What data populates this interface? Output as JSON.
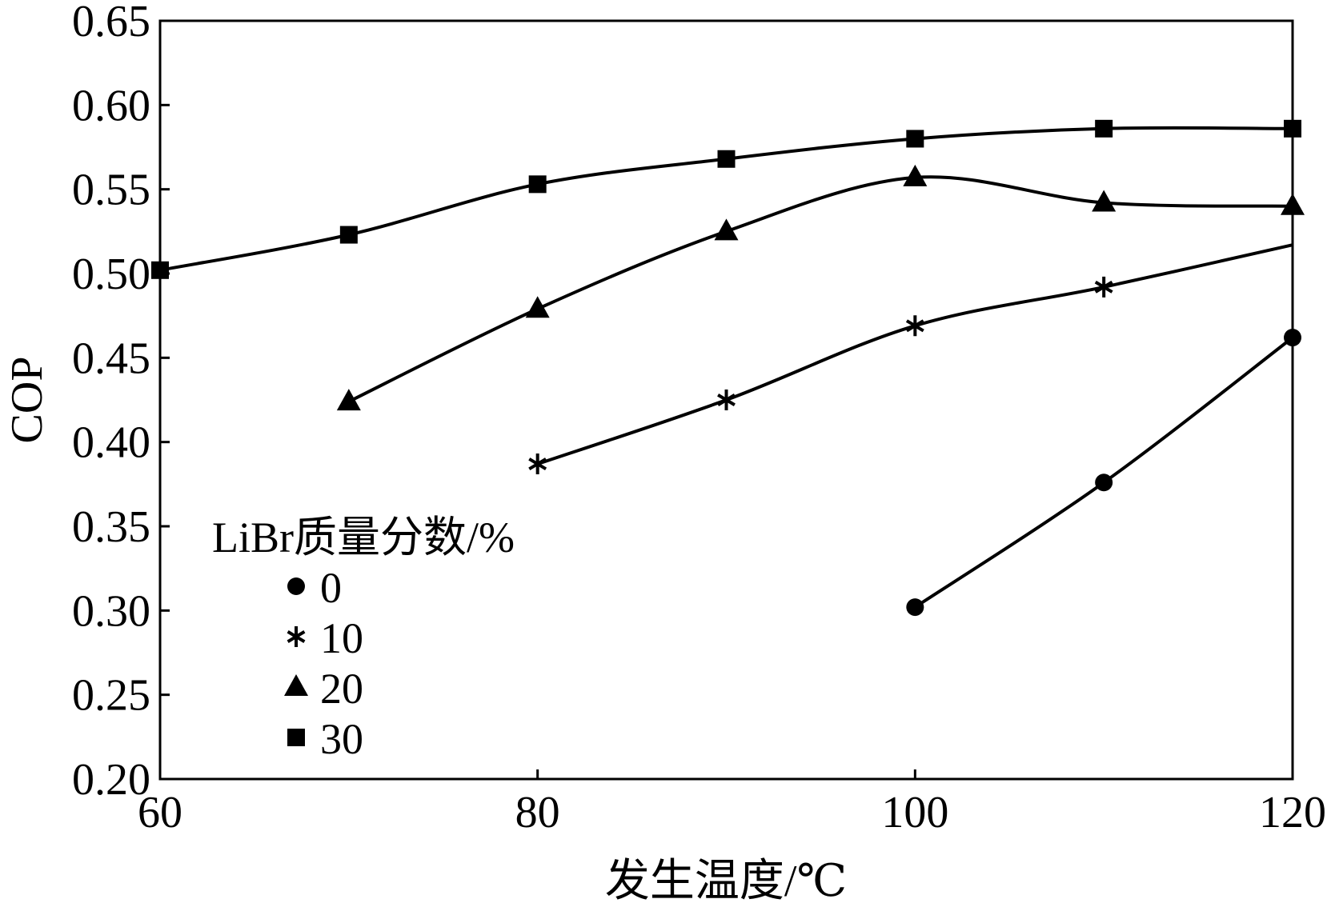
{
  "chart_data": {
    "type": "line",
    "xlabel": "发生温度/℃",
    "ylabel": "COP",
    "xlim": [
      60,
      120
    ],
    "ylim": [
      0.2,
      0.65
    ],
    "xticks": [
      "60",
      "80",
      "100",
      "120"
    ],
    "xtick_values": [
      60,
      80,
      100,
      120
    ],
    "yticks": [
      "0.20",
      "0.25",
      "0.30",
      "0.35",
      "0.40",
      "0.45",
      "0.50",
      "0.55",
      "0.60",
      "0.65"
    ],
    "ytick_values": [
      0.2,
      0.25,
      0.3,
      0.35,
      0.4,
      0.45,
      0.5,
      0.55,
      0.6,
      0.65
    ],
    "grid": false,
    "legend_title": "LiBr质量分数/%",
    "legend_position": "bottom-left",
    "series": [
      {
        "name": "0",
        "marker": "circle",
        "points": [
          [
            100,
            0.302
          ],
          [
            110,
            0.376
          ],
          [
            120,
            0.462
          ]
        ],
        "curve": [
          [
            100,
            0.302
          ],
          [
            110,
            0.376
          ],
          [
            120,
            0.462
          ]
        ]
      },
      {
        "name": "10",
        "marker": "asterisk",
        "points": [
          [
            80,
            0.387
          ],
          [
            90,
            0.425
          ],
          [
            100,
            0.469
          ],
          [
            110,
            0.492
          ]
        ],
        "curve": [
          [
            80,
            0.387
          ],
          [
            90,
            0.425
          ],
          [
            100,
            0.469
          ],
          [
            110,
            0.492
          ],
          [
            120,
            0.517
          ]
        ]
      },
      {
        "name": "20",
        "marker": "triangle",
        "points": [
          [
            70,
            0.424
          ],
          [
            80,
            0.479
          ],
          [
            90,
            0.525
          ],
          [
            100,
            0.557
          ],
          [
            110,
            0.542
          ],
          [
            120,
            0.54
          ]
        ],
        "curve": [
          [
            70,
            0.424
          ],
          [
            80,
            0.479
          ],
          [
            90,
            0.525
          ],
          [
            100,
            0.557
          ],
          [
            110,
            0.542
          ],
          [
            120,
            0.54
          ]
        ]
      },
      {
        "name": "30",
        "marker": "square",
        "points": [
          [
            60,
            0.502
          ],
          [
            70,
            0.523
          ],
          [
            80,
            0.553
          ],
          [
            90,
            0.568
          ],
          [
            100,
            0.58
          ],
          [
            110,
            0.586
          ],
          [
            120,
            0.586
          ]
        ],
        "curve": [
          [
            60,
            0.502
          ],
          [
            70,
            0.523
          ],
          [
            80,
            0.553
          ],
          [
            90,
            0.568
          ],
          [
            100,
            0.58
          ],
          [
            110,
            0.586
          ],
          [
            120,
            0.586
          ]
        ]
      }
    ],
    "line_color": "#000000"
  }
}
